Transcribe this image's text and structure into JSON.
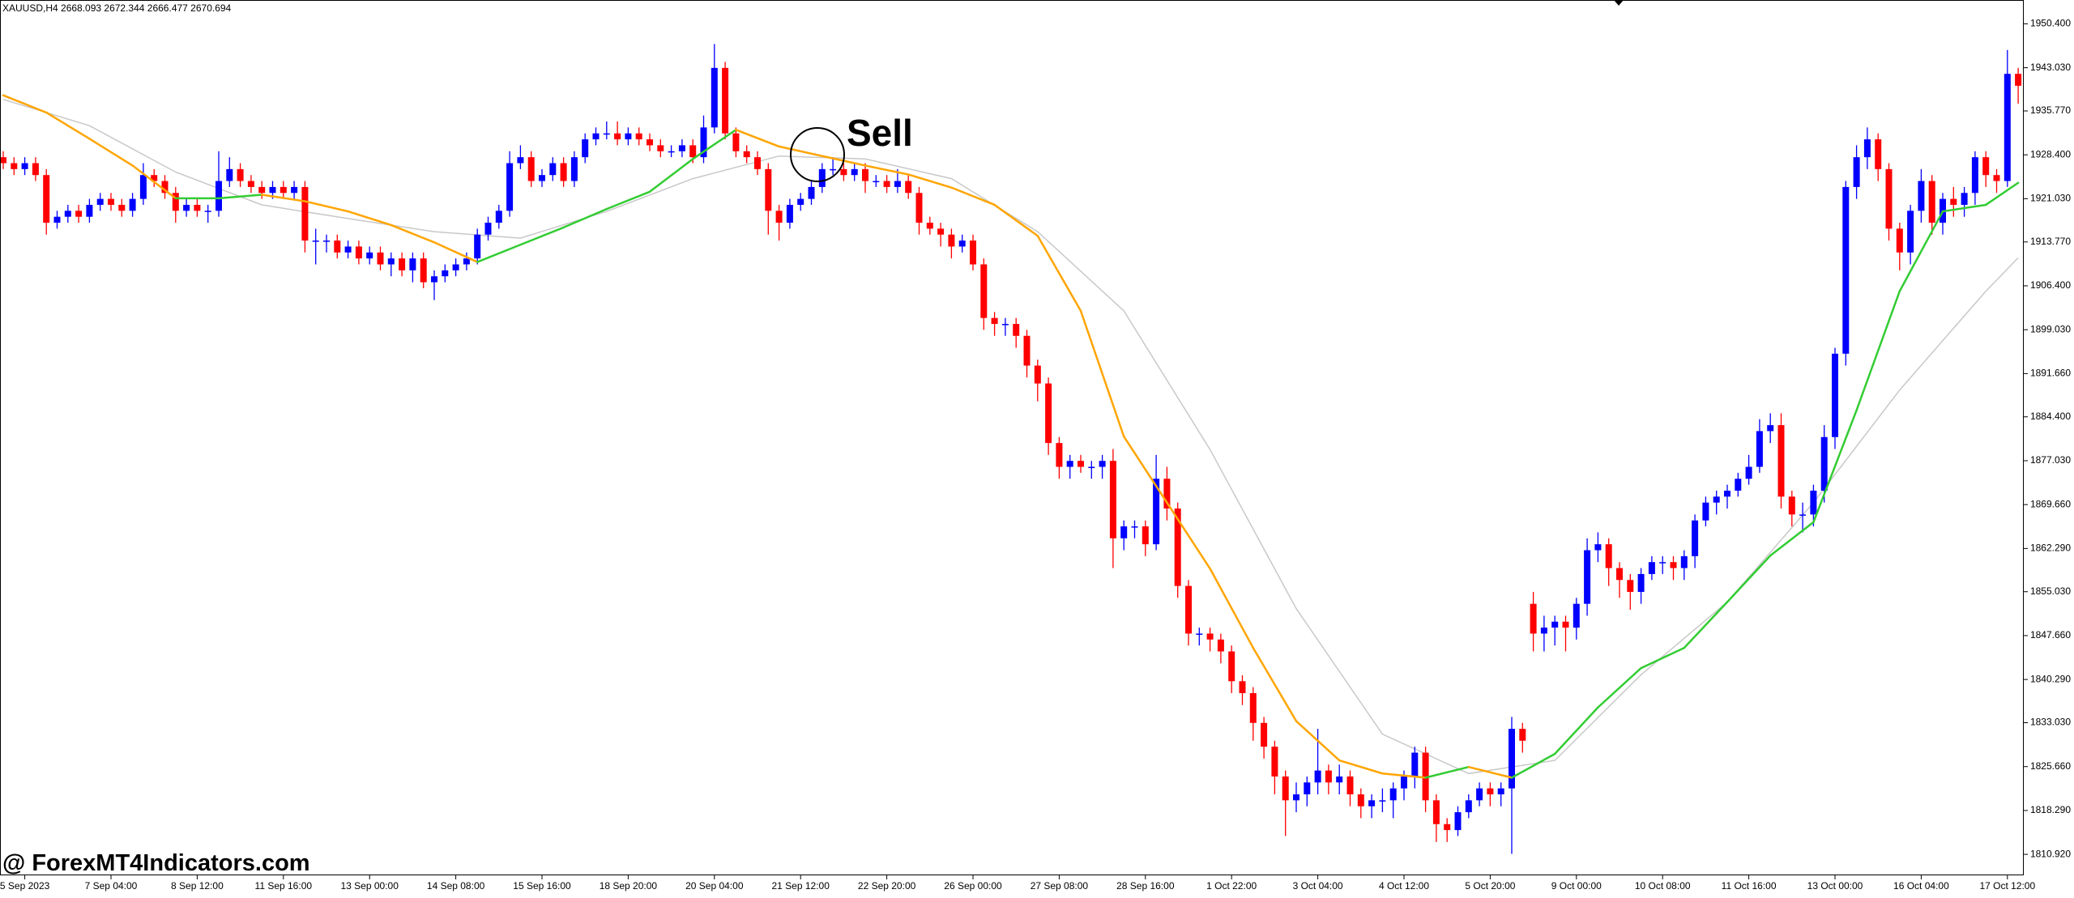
{
  "chart_data": {
    "type": "candlestick",
    "title": "XAUUSD,H4  2668.093 2672.344 2666.477 2670.694",
    "annotation": "Sell",
    "watermark": "@ ForexMT4Indicators.com",
    "up_color": "#0000ff",
    "down_color": "#ff0000",
    "categories": [
      null,
      null,
      "5 Sep 2023",
      null,
      null,
      null,
      null,
      null,
      null,
      null,
      "7 Sep 04:00",
      null,
      null,
      null,
      null,
      null,
      null,
      null,
      "8 Sep 12:00",
      null,
      null,
      null,
      null,
      null,
      null,
      null,
      "11 Sep 16:00",
      null,
      null,
      null,
      null,
      null,
      null,
      null,
      "13 Sep 00:00",
      null,
      null,
      null,
      null,
      null,
      null,
      null,
      "14 Sep 08:00",
      null,
      null,
      null,
      null,
      null,
      null,
      null,
      "15 Sep 16:00",
      null,
      null,
      null,
      null,
      null,
      null,
      null,
      "18 Sep 20:00",
      null,
      null,
      null,
      null,
      null,
      null,
      null,
      "20 Sep 04:00",
      null,
      null,
      null,
      null,
      null,
      null,
      null,
      "21 Sep 12:00",
      null,
      null,
      null,
      null,
      null,
      null,
      null,
      "22 Sep 20:00",
      null,
      null,
      null,
      null,
      null,
      null,
      null,
      "26 Sep 00:00",
      null,
      null,
      null,
      null,
      null,
      null,
      null,
      "27 Sep 08:00",
      null,
      null,
      null,
      null,
      null,
      null,
      null,
      "28 Sep 16:00",
      null,
      null,
      null,
      null,
      null,
      null,
      null,
      "1 Oct 22:00",
      null,
      null,
      null,
      null,
      null,
      null,
      null,
      "3 Oct 04:00",
      null,
      null,
      null,
      null,
      null,
      null,
      null,
      "4 Oct 12:00",
      null,
      null,
      null,
      null,
      null,
      null,
      null,
      "5 Oct 20:00",
      null,
      null,
      null,
      null,
      null,
      null,
      null,
      "9 Oct 00:00",
      null,
      null,
      null,
      null,
      null,
      null,
      null,
      "10 Oct 08:00",
      null,
      null,
      null,
      null,
      null,
      null,
      null,
      "11 Oct 16:00",
      null,
      null,
      null,
      null,
      null,
      null,
      null,
      "13 Oct 00:00",
      null,
      null,
      null,
      null,
      null,
      null,
      null,
      "16 Oct 04:00",
      null,
      null,
      null,
      null,
      null,
      null,
      null,
      "17 Oct 12:00",
      null
    ],
    "open": [
      1928,
      1927,
      1926,
      1927,
      1925,
      1917,
      1918,
      1919,
      1918,
      1920,
      1921,
      1920,
      1919,
      1921,
      1925,
      1924,
      1922,
      1919,
      1920,
      1919,
      1919,
      1924,
      1926,
      1924,
      1923,
      1922,
      1923,
      1922,
      1923,
      1914,
      1914,
      1914,
      1912,
      1913,
      1911,
      1912,
      1910,
      1911,
      1909,
      1911,
      1907,
      1908,
      1909,
      1910,
      1911,
      1915,
      1917,
      1919,
      1927,
      1928,
      1924,
      1925,
      1927,
      1924,
      1928,
      1931,
      1932,
      1932,
      1931,
      1932,
      1931,
      1930,
      1929,
      1929,
      1930,
      1928,
      1933,
      1943,
      1932,
      1929,
      1928,
      1926,
      1919,
      1917,
      1920,
      1921,
      1923,
      1926,
      1926,
      1925,
      1926,
      1924,
      1924,
      1923,
      1924,
      1922,
      1917,
      1916,
      1915,
      1913,
      1914,
      1910,
      1901,
      1900,
      1900,
      1898,
      1893,
      1890,
      1880,
      1876,
      1877,
      1876,
      1876,
      1877,
      1864,
      1866,
      1866,
      1863,
      1874,
      1869,
      1856,
      1848,
      1848,
      1847,
      1845,
      1840,
      1838,
      1833,
      1829,
      1824,
      1820,
      1821,
      1823,
      1825,
      1823,
      1824,
      1821,
      1819,
      1820,
      1820,
      1822,
      1824,
      1828,
      1820,
      1816,
      1815,
      1818,
      1820,
      1822,
      1821,
      1822,
      1832,
      1853,
      1848,
      1849,
      1850,
      1849,
      1853,
      1862,
      1863,
      1859,
      1857,
      1855,
      1858,
      1860,
      1860,
      1859,
      1861,
      1867,
      1870,
      1871,
      1872,
      1874,
      1876,
      1882,
      1883,
      1871,
      1868,
      1868,
      1872,
      1881,
      1895,
      1923,
      1928,
      1931,
      1926,
      1916,
      1912,
      1919,
      1924,
      1917,
      1921,
      1920,
      1922,
      1928,
      1925,
      1924,
      1942
    ],
    "high": [
      1929,
      1928,
      1928,
      1928,
      1926,
      1919,
      1920,
      1920,
      1921,
      1922,
      1922,
      1921,
      1922,
      1927,
      1926,
      1925,
      1923,
      1921,
      1921,
      1920,
      1929,
      1928,
      1927,
      1925,
      1924,
      1924,
      1924,
      1924,
      1924,
      1916,
      1915,
      1915,
      1914,
      1914,
      1913,
      1913,
      1912,
      1912,
      1912,
      1912,
      1909,
      1910,
      1911,
      1912,
      1916,
      1918,
      1920,
      1929,
      1930,
      1929,
      1926,
      1928,
      1928,
      1929,
      1932,
      1933,
      1934,
      1934,
      1933,
      1933,
      1932,
      1931,
      1930,
      1931,
      1931,
      1935,
      1947,
      1944,
      1933,
      1930,
      1929,
      1927,
      1920,
      1921,
      1922,
      1924,
      1927,
      1928,
      1927,
      1927,
      1927,
      1925,
      1925,
      1926,
      1925,
      1923,
      1918,
      1917,
      1916,
      1915,
      1915,
      1911,
      1902,
      1901,
      1901,
      1899,
      1894,
      1891,
      1881,
      1878,
      1878,
      1877,
      1878,
      1879,
      1867,
      1867,
      1867,
      1878,
      1876,
      1870,
      1857,
      1849,
      1849,
      1848,
      1846,
      1841,
      1839,
      1834,
      1830,
      1825,
      1823,
      1824,
      1832,
      1826,
      1826,
      1825,
      1822,
      1821,
      1822,
      1823,
      1825,
      1829,
      1829,
      1821,
      1817,
      1819,
      1821,
      1823,
      1823,
      1823,
      1834,
      1833,
      1855,
      1851,
      1851,
      1851,
      1854,
      1864,
      1865,
      1864,
      1860,
      1858,
      1859,
      1861,
      1861,
      1861,
      1862,
      1868,
      1871,
      1872,
      1873,
      1875,
      1878,
      1884,
      1885,
      1885,
      1872,
      1870,
      1873,
      1883,
      1896,
      1924,
      1930,
      1933,
      1932,
      1927,
      1917,
      1920,
      1926,
      1925,
      1922,
      1923,
      1923,
      1929,
      1929,
      1926,
      1946,
      1943
    ],
    "low": [
      1926,
      1925,
      1925,
      1924,
      1915,
      1916,
      1917,
      1917,
      1917,
      1919,
      1919,
      1918,
      1918,
      1920,
      1923,
      1921,
      1917,
      1918,
      1918,
      1917,
      1918,
      1923,
      1923,
      1922,
      1921,
      1921,
      1921,
      1921,
      1912,
      1910,
      1912,
      1911,
      1911,
      1910,
      1910,
      1909,
      1908,
      1908,
      1907,
      1906,
      1904,
      1907,
      1908,
      1909,
      1910,
      1914,
      1916,
      1918,
      1926,
      1923,
      1923,
      1924,
      1923,
      1923,
      1927,
      1930,
      1931,
      1930,
      1930,
      1930,
      1929,
      1928,
      1928,
      1928,
      1927,
      1927,
      1932,
      1931,
      1928,
      1927,
      1925,
      1915,
      1914,
      1916,
      1919,
      1920,
      1922,
      1925,
      1924,
      1924,
      1922,
      1923,
      1922,
      1922,
      1921,
      1915,
      1915,
      1913,
      1911,
      1912,
      1909,
      1899,
      1898,
      1898,
      1896,
      1891,
      1887,
      1878,
      1874,
      1874,
      1875,
      1874,
      1874,
      1859,
      1862,
      1864,
      1861,
      1862,
      1867,
      1854,
      1846,
      1846,
      1845,
      1843,
      1838,
      1836,
      1830,
      1827,
      1821,
      1814,
      1818,
      1819,
      1821,
      1821,
      1821,
      1819,
      1817,
      1817,
      1818,
      1817,
      1820,
      1822,
      1818,
      1813,
      1813,
      1814,
      1817,
      1819,
      1819,
      1819,
      1811,
      1828,
      1845,
      1845,
      1846,
      1845,
      1847,
      1851,
      1860,
      1856,
      1854,
      1852,
      1853,
      1857,
      1858,
      1857,
      1857,
      1859,
      1866,
      1868,
      1869,
      1871,
      1873,
      1875,
      1880,
      1869,
      1866,
      1865,
      1866,
      1870,
      1879,
      1893,
      1921,
      1926,
      1924,
      1914,
      1909,
      1910,
      1917,
      1915,
      1915,
      1918,
      1918,
      1920,
      1923,
      1922,
      1923,
      1937
    ],
    "close": [
      1927,
      1926,
      1927,
      1925,
      1917,
      1918,
      1919,
      1918,
      1920,
      1921,
      1920,
      1919,
      1921,
      1925,
      1924,
      1922,
      1919,
      1920,
      1919,
      1919,
      1924,
      1926,
      1924,
      1923,
      1922,
      1923,
      1922,
      1923,
      1914,
      1914,
      1914,
      1912,
      1913,
      1911,
      1912,
      1910,
      1911,
      1909,
      1911,
      1907,
      1908,
      1909,
      1910,
      1911,
      1915,
      1917,
      1919,
      1927,
      1928,
      1924,
      1925,
      1927,
      1924,
      1928,
      1931,
      1932,
      1932,
      1931,
      1932,
      1931,
      1930,
      1929,
      1929,
      1930,
      1928,
      1933,
      1943,
      1932,
      1929,
      1928,
      1926,
      1919,
      1917,
      1920,
      1921,
      1923,
      1926,
      1926,
      1925,
      1926,
      1924,
      1924,
      1923,
      1924,
      1922,
      1917,
      1916,
      1915,
      1913,
      1914,
      1910,
      1901,
      1900,
      1900,
      1898,
      1893,
      1890,
      1880,
      1876,
      1877,
      1876,
      1876,
      1877,
      1864,
      1866,
      1866,
      1863,
      1874,
      1869,
      1856,
      1848,
      1848,
      1847,
      1845,
      1840,
      1838,
      1833,
      1829,
      1824,
      1820,
      1821,
      1823,
      1825,
      1823,
      1824,
      1821,
      1819,
      1820,
      1820,
      1822,
      1824,
      1828,
      1820,
      1816,
      1815,
      1818,
      1820,
      1822,
      1821,
      1822,
      1832,
      1830,
      1848,
      1849,
      1850,
      1849,
      1853,
      1862,
      1863,
      1859,
      1857,
      1855,
      1858,
      1860,
      1860,
      1859,
      1861,
      1867,
      1870,
      1871,
      1872,
      1874,
      1876,
      1882,
      1883,
      1871,
      1868,
      1868,
      1872,
      1881,
      1895,
      1923,
      1928,
      1931,
      1926,
      1916,
      1912,
      1919,
      1924,
      1917,
      1921,
      1920,
      1922,
      1928,
      1925,
      1924,
      1942,
      1940
    ],
    "fast_ma": {
      "rise_color": "#33cc33",
      "fall_color": "#ffa500",
      "x": [
        0,
        4,
        8,
        12,
        16,
        20,
        24,
        28,
        32,
        36,
        40,
        44,
        48,
        52,
        56,
        60,
        64,
        68,
        72,
        76,
        80,
        84,
        88,
        92,
        96,
        100,
        104,
        108,
        112,
        116,
        120,
        124,
        128,
        132,
        136,
        140,
        144,
        148,
        152,
        156,
        160,
        164,
        168,
        172,
        176,
        180,
        184,
        187
      ],
      "values": [
        1938.4,
        1935.5,
        1931.1,
        1926.6,
        1921.1,
        1921.1,
        1921.7,
        1920.6,
        1918.9,
        1916.6,
        1913.7,
        1910.4,
        1913.3,
        1916.2,
        1919.3,
        1922.2,
        1927.7,
        1932.6,
        1929.8,
        1928.2,
        1926.6,
        1925.1,
        1922.9,
        1920.0,
        1914.8,
        1902.2,
        1881.1,
        1870.0,
        1858.9,
        1845.6,
        1833.3,
        1826.7,
        1824.5,
        1823.8,
        1825.6,
        1823.8,
        1827.8,
        1835.6,
        1842.2,
        1845.6,
        1853.3,
        1861.1,
        1866.7,
        1885.5,
        1905.5,
        1918.9,
        1920.0,
        1923.7
      ]
    },
    "slow_ma": {
      "color": "#c8c8c8",
      "x": [
        0,
        8,
        16,
        24,
        32,
        40,
        48,
        56,
        64,
        72,
        80,
        88,
        96,
        104,
        112,
        120,
        128,
        136,
        144,
        152,
        160,
        168,
        176,
        184,
        187
      ],
      "values": [
        1937.7,
        1933.3,
        1925.5,
        1920.0,
        1917.7,
        1915.5,
        1914.4,
        1918.9,
        1924.4,
        1928.2,
        1927.7,
        1924.4,
        1915.5,
        1902.2,
        1878.9,
        1852.2,
        1831.1,
        1824.5,
        1826.7,
        1841.1,
        1853.3,
        1870.0,
        1888.9,
        1905.5,
        1911.1
      ]
    },
    "ylim": [
      1807.4,
      1954.4
    ],
    "yticks": [
      {
        "value": 1950.4,
        "label": "1950.400"
      },
      {
        "value": 1943.03,
        "label": "1943.030"
      },
      {
        "value": 1935.77,
        "label": "1935.770"
      },
      {
        "value": 1928.4,
        "label": "1928.400"
      },
      {
        "value": 1921.03,
        "label": "1921.030"
      },
      {
        "value": 1913.77,
        "label": "1913.770"
      },
      {
        "value": 1906.4,
        "label": "1906.400"
      },
      {
        "value": 1899.03,
        "label": "1899.030"
      },
      {
        "value": 1891.66,
        "label": "1891.660"
      },
      {
        "value": 1884.4,
        "label": "1884.400"
      },
      {
        "value": 1877.03,
        "label": "1877.030"
      },
      {
        "value": 1869.66,
        "label": "1869.660"
      },
      {
        "value": 1862.29,
        "label": "1862.290"
      },
      {
        "value": 1855.03,
        "label": "1855.030"
      },
      {
        "value": 1847.66,
        "label": "1847.660"
      },
      {
        "value": 1840.29,
        "label": "1840.290"
      },
      {
        "value": 1833.03,
        "label": "1833.030"
      },
      {
        "value": 1825.66,
        "label": "1825.660"
      },
      {
        "value": 1818.29,
        "label": "1818.290"
      },
      {
        "value": 1810.92,
        "label": "1810.920"
      }
    ]
  }
}
